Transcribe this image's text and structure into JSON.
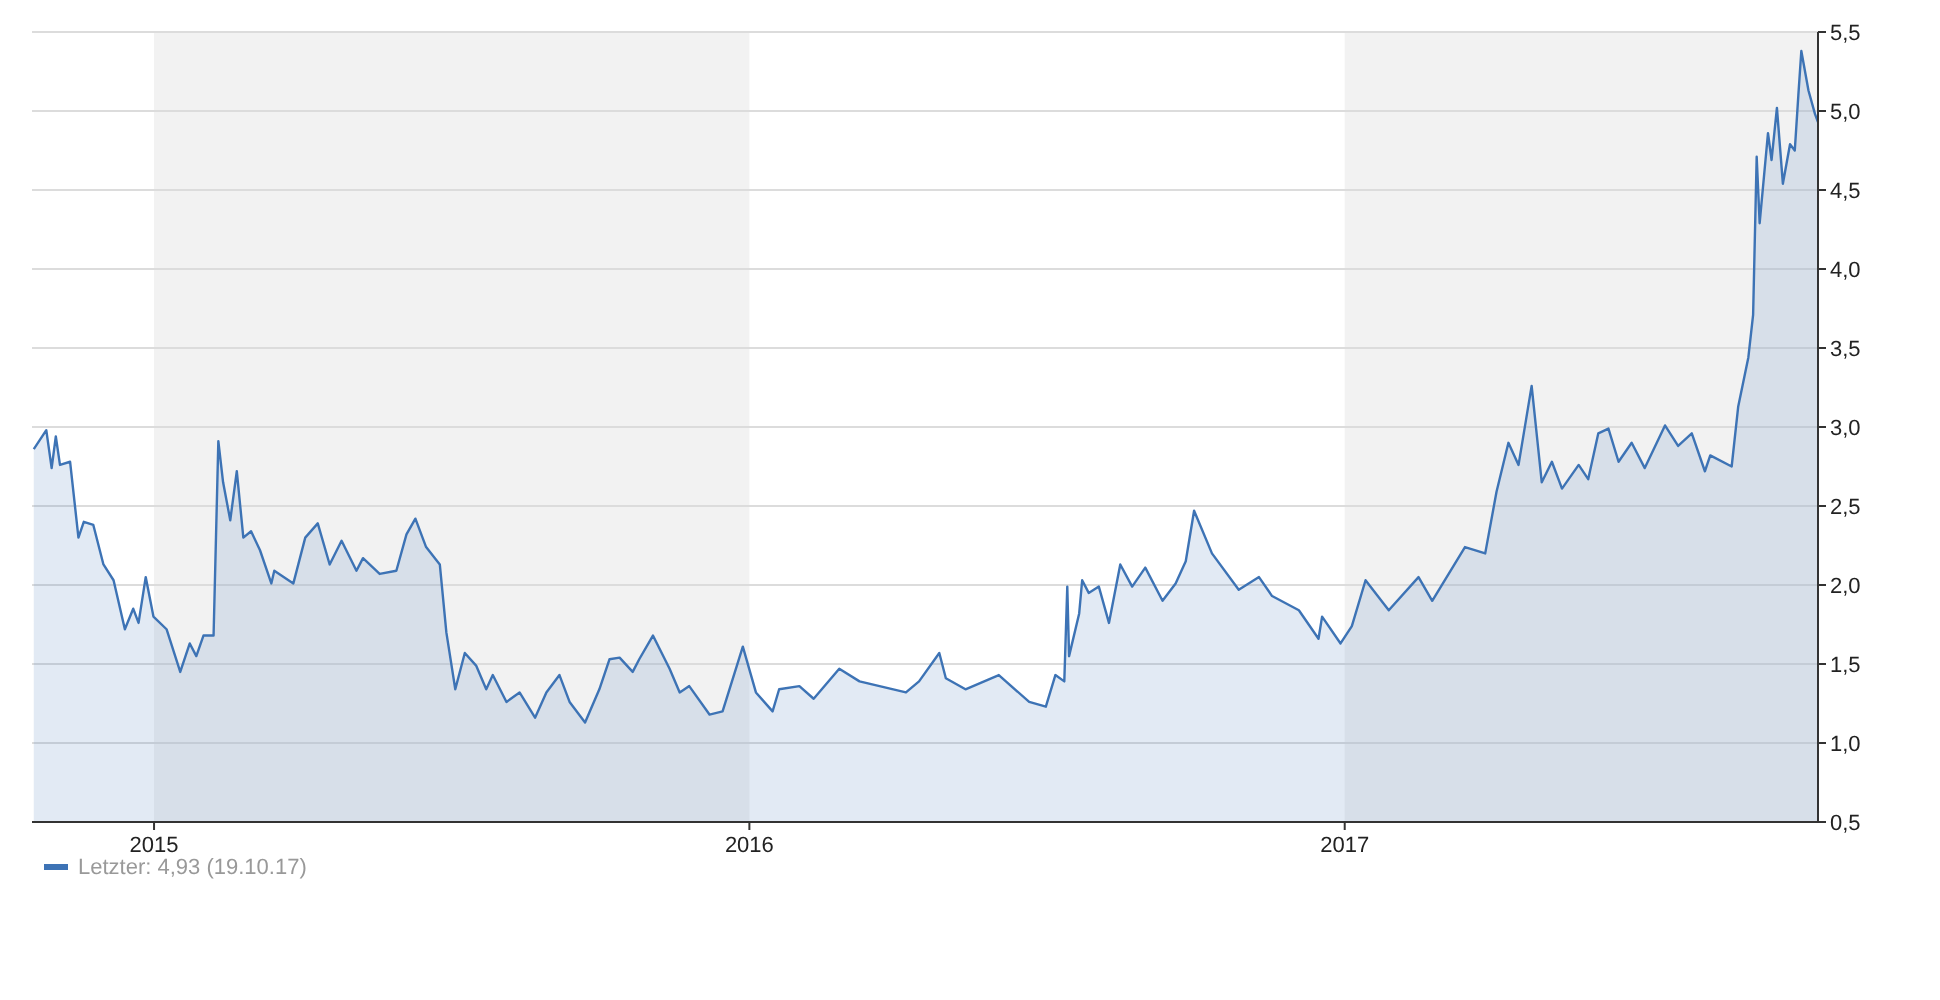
{
  "chart_data": {
    "type": "area",
    "x": [
      2014.798,
      2014.819,
      2014.828,
      2014.835,
      2014.842,
      2014.859,
      2014.873,
      2014.882,
      2014.898,
      2014.915,
      2014.932,
      2014.951,
      2014.965,
      2014.974,
      2014.986,
      2014.999,
      2015.021,
      2015.044,
      2015.06,
      2015.071,
      2015.083,
      2015.1,
      2015.108,
      2015.116,
      2015.128,
      2015.139,
      2015.15,
      2015.163,
      2015.178,
      2015.197,
      2015.202,
      2015.234,
      2015.254,
      2015.275,
      2015.295,
      2015.315,
      2015.34,
      2015.351,
      2015.379,
      2015.407,
      2015.424,
      2015.439,
      2015.457,
      2015.48,
      2015.491,
      2015.506,
      2015.522,
      2015.541,
      2015.558,
      2015.569,
      2015.592,
      2015.614,
      2015.64,
      2015.659,
      2015.681,
      2015.698,
      2015.724,
      2015.748,
      2015.765,
      2015.782,
      2015.804,
      2015.815,
      2015.838,
      2015.866,
      2015.883,
      2015.899,
      2015.933,
      2015.955,
      2015.989,
      2016.011,
      2016.039,
      2016.05,
      2016.084,
      2016.108,
      2016.151,
      2016.185,
      2016.263,
      2016.285,
      2016.319,
      2016.33,
      2016.363,
      2016.419,
      2016.47,
      2016.498,
      2016.514,
      2016.529,
      2016.534,
      2016.537,
      2016.554,
      2016.559,
      2016.57,
      2016.587,
      2016.604,
      2016.623,
      2016.643,
      2016.665,
      2016.694,
      2016.716,
      2016.733,
      2016.747,
      2016.777,
      2016.822,
      2016.856,
      2016.878,
      2016.923,
      2016.956,
      2016.962,
      2016.993,
      2017.012,
      2017.035,
      2017.074,
      2017.124,
      2017.147,
      2017.202,
      2017.236,
      2017.255,
      2017.275,
      2017.292,
      2017.314,
      2017.331,
      2017.348,
      2017.365,
      2017.393,
      2017.409,
      2017.426,
      2017.443,
      2017.46,
      2017.482,
      2017.504,
      2017.538,
      2017.56,
      2017.583,
      2017.605,
      2017.614,
      2017.65,
      2017.661,
      2017.678,
      2017.686,
      2017.692,
      2017.697,
      2017.711,
      2017.717,
      2017.726,
      2017.736,
      2017.748,
      2017.756,
      2017.762,
      2017.767,
      2017.779,
      2017.79,
      2017.795
    ],
    "series": [
      {
        "name": "Letzter: 4,93 (19.10.17)",
        "color": "#3d73b5",
        "values": [
          2.86,
          2.98,
          2.74,
          2.94,
          2.76,
          2.78,
          2.3,
          2.4,
          2.38,
          2.13,
          2.03,
          1.72,
          1.85,
          1.76,
          2.05,
          1.8,
          1.72,
          1.45,
          1.63,
          1.55,
          1.68,
          1.68,
          2.91,
          2.65,
          2.41,
          2.72,
          2.3,
          2.34,
          2.22,
          2.01,
          2.09,
          2.01,
          2.3,
          2.39,
          2.13,
          2.28,
          2.09,
          2.17,
          2.07,
          2.09,
          2.32,
          2.42,
          2.24,
          2.13,
          1.7,
          1.34,
          1.57,
          1.49,
          1.34,
          1.43,
          1.26,
          1.32,
          1.16,
          1.32,
          1.43,
          1.26,
          1.13,
          1.34,
          1.53,
          1.54,
          1.45,
          1.53,
          1.68,
          1.47,
          1.32,
          1.36,
          1.18,
          1.2,
          1.61,
          1.32,
          1.2,
          1.34,
          1.36,
          1.28,
          1.47,
          1.39,
          1.32,
          1.39,
          1.57,
          1.41,
          1.34,
          1.43,
          1.26,
          1.23,
          1.43,
          1.39,
          1.99,
          1.55,
          1.82,
          2.03,
          1.95,
          1.99,
          1.76,
          2.13,
          1.99,
          2.11,
          1.9,
          2.01,
          2.15,
          2.47,
          2.2,
          1.97,
          2.05,
          1.93,
          1.84,
          1.66,
          1.8,
          1.63,
          1.74,
          2.03,
          1.84,
          2.05,
          1.9,
          2.24,
          2.2,
          2.59,
          2.9,
          2.76,
          3.26,
          2.65,
          2.78,
          2.61,
          2.76,
          2.67,
          2.96,
          2.99,
          2.78,
          2.9,
          2.74,
          3.01,
          2.88,
          2.96,
          2.72,
          2.82,
          2.75,
          3.13,
          3.44,
          3.71,
          4.71,
          4.29,
          4.86,
          4.69,
          5.02,
          4.54,
          4.79,
          4.75,
          5.1,
          5.38,
          5.13,
          4.98,
          4.93
        ]
      }
    ],
    "xlim": [
      2014.795,
      2017.795
    ],
    "xticks": [
      2015,
      2016,
      2017
    ],
    "ylim": [
      0.5,
      5.5
    ],
    "yticks": [
      {
        "value": 0.5,
        "label": "0,5"
      },
      {
        "value": 1,
        "label": "1,0"
      },
      {
        "value": 1.5,
        "label": "1,5"
      },
      {
        "value": 2,
        "label": "2,0"
      },
      {
        "value": 2.5,
        "label": "2,5"
      },
      {
        "value": 3,
        "label": "3,0"
      },
      {
        "value": 3.5,
        "label": "3,5"
      },
      {
        "value": 4,
        "label": "4,0"
      },
      {
        "value": 4.5,
        "label": "4,5"
      },
      {
        "value": 5,
        "label": "5,0"
      },
      {
        "value": 5.5,
        "label": "5,5"
      }
    ],
    "bands": [
      {
        "axis": "x",
        "from": 2015,
        "to": 2016,
        "color": "#f2f2f2"
      },
      {
        "axis": "x",
        "from": 2017,
        "to": 2017.795,
        "color": "#f2f2f2"
      }
    ],
    "grid": "y",
    "legend": "bottom left"
  }
}
